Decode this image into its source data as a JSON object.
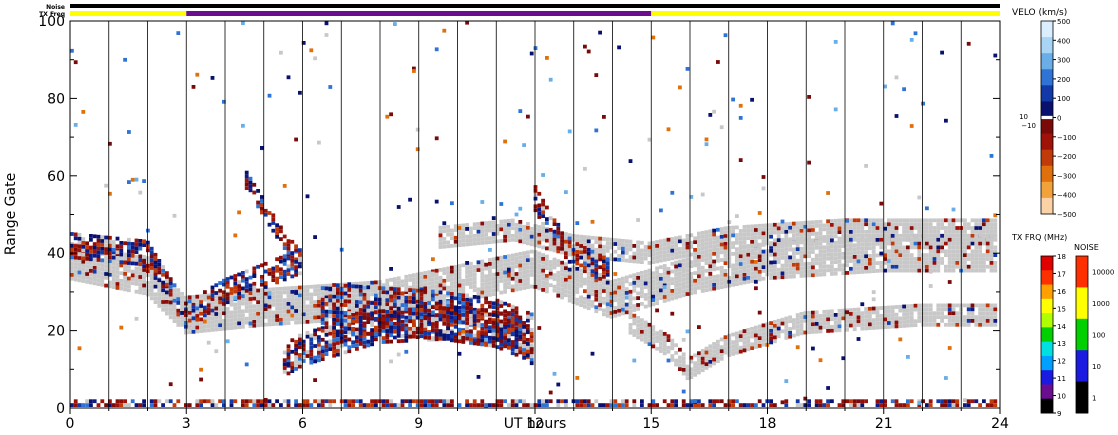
{
  "chart_data": {
    "type": "heatmap",
    "xlabel": "UT hours",
    "ylabel": "Range Gate",
    "xlim": [
      0,
      24
    ],
    "ylim": [
      0,
      100
    ],
    "x_ticks": [
      "0",
      "3",
      "6",
      "9",
      "12",
      "15",
      "18",
      "21",
      "24"
    ],
    "y_ticks": [
      "0",
      "20",
      "40",
      "60",
      "80",
      "100"
    ],
    "top_strips": {
      "noise_label": "Noise",
      "txfreq_label": "TX Freq",
      "txfreq_segments": [
        {
          "start": 0,
          "end": 3,
          "color": "#ffff00"
        },
        {
          "start": 3,
          "end": 15,
          "color": "#6a0d8f"
        },
        {
          "start": 15,
          "end": 24,
          "color": "#ffff00"
        }
      ]
    },
    "velocity_colorbar": {
      "title": "VELO (km/s)",
      "ticks": [
        "500",
        "400",
        "300",
        "200",
        "100",
        "0",
        "−100",
        "−200",
        "−300",
        "−400",
        "−500"
      ],
      "side_labels": [
        "10",
        "−10"
      ],
      "colors": [
        "#dbeeff",
        "#a8d4f5",
        "#6aaee8",
        "#2f74d4",
        "#1139a8",
        "#08126e",
        "#7a0a0a",
        "#9e1208",
        "#c13a0a",
        "#e0700c",
        "#f2a23a",
        "#fad2a6"
      ]
    },
    "txfreq_colorbar": {
      "title": "TX FRQ (MHz)",
      "ticks": [
        "18",
        "17",
        "16",
        "15",
        "14",
        "13",
        "12",
        "11",
        "10",
        "9"
      ],
      "colors": [
        "#000000",
        "#6a0d8f",
        "#1a1ae0",
        "#00a0ff",
        "#00e0e0",
        "#00d000",
        "#b0ff00",
        "#ffff00",
        "#ffa000",
        "#ff3000",
        "#e00000"
      ]
    },
    "noise_colorbar": {
      "title": "NOISE",
      "ticks": [
        "10000",
        "1000",
        "100",
        "10",
        "1"
      ],
      "colors": [
        "#000000",
        "#1a1ae0",
        "#00d000",
        "#ffff00",
        "#ff3000"
      ]
    },
    "scatter_bands": [
      {
        "kind": "ground",
        "pts": [
          [
            0,
            38
          ],
          [
            2,
            34
          ],
          [
            3,
            24
          ],
          [
            5,
            26
          ],
          [
            8,
            28
          ],
          [
            10,
            32
          ],
          [
            12,
            36
          ],
          [
            14,
            28
          ],
          [
            16,
            34
          ],
          [
            18,
            38
          ],
          [
            21,
            40
          ],
          [
            24,
            40
          ]
        ],
        "width": 9
      },
      {
        "kind": "ground",
        "pts": [
          [
            14.5,
            22
          ],
          [
            15.5,
            16
          ],
          [
            16,
            10
          ],
          [
            17,
            16
          ],
          [
            19,
            22
          ],
          [
            22,
            24
          ],
          [
            24,
            24
          ]
        ],
        "width": 5
      },
      {
        "kind": "ground",
        "pts": [
          [
            9.5,
            44
          ],
          [
            11.5,
            46
          ],
          [
            13,
            42
          ],
          [
            15,
            40
          ],
          [
            17,
            44
          ],
          [
            20,
            46
          ],
          [
            24,
            46
          ]
        ],
        "width": 5
      },
      {
        "kind": "ionos",
        "pts": [
          [
            5.5,
            12
          ],
          [
            6,
            15
          ],
          [
            7,
            18
          ],
          [
            8,
            21
          ],
          [
            10,
            22
          ],
          [
            11.5,
            20
          ],
          [
            12,
            16
          ]
        ],
        "width": 8
      },
      {
        "kind": "ionos",
        "pts": [
          [
            6.5,
            26
          ],
          [
            8,
            25
          ],
          [
            9.5,
            24
          ],
          [
            11,
            22
          ],
          [
            12,
            18
          ]
        ],
        "width": 12
      },
      {
        "kind": "ionos",
        "pts": [
          [
            0,
            42
          ],
          [
            1,
            41
          ],
          [
            2,
            40
          ],
          [
            3,
            24
          ],
          [
            4,
            30
          ],
          [
            5,
            34
          ],
          [
            6,
            38
          ]
        ],
        "width": 6
      },
      {
        "kind": "ionos",
        "pts": [
          [
            12,
            55
          ],
          [
            12.5,
            46
          ],
          [
            13,
            40
          ],
          [
            14,
            35
          ]
        ],
        "width": 6
      },
      {
        "kind": "ionos",
        "pts": [
          [
            0,
            1
          ],
          [
            6,
            1
          ],
          [
            12,
            1
          ],
          [
            18,
            1
          ],
          [
            24,
            1
          ]
        ],
        "width": 2.5
      },
      {
        "kind": "ionos",
        "pts": [
          [
            4.5,
            60
          ],
          [
            5,
            52
          ],
          [
            5.5,
            44
          ],
          [
            6,
            38
          ]
        ],
        "width": 4
      }
    ]
  }
}
